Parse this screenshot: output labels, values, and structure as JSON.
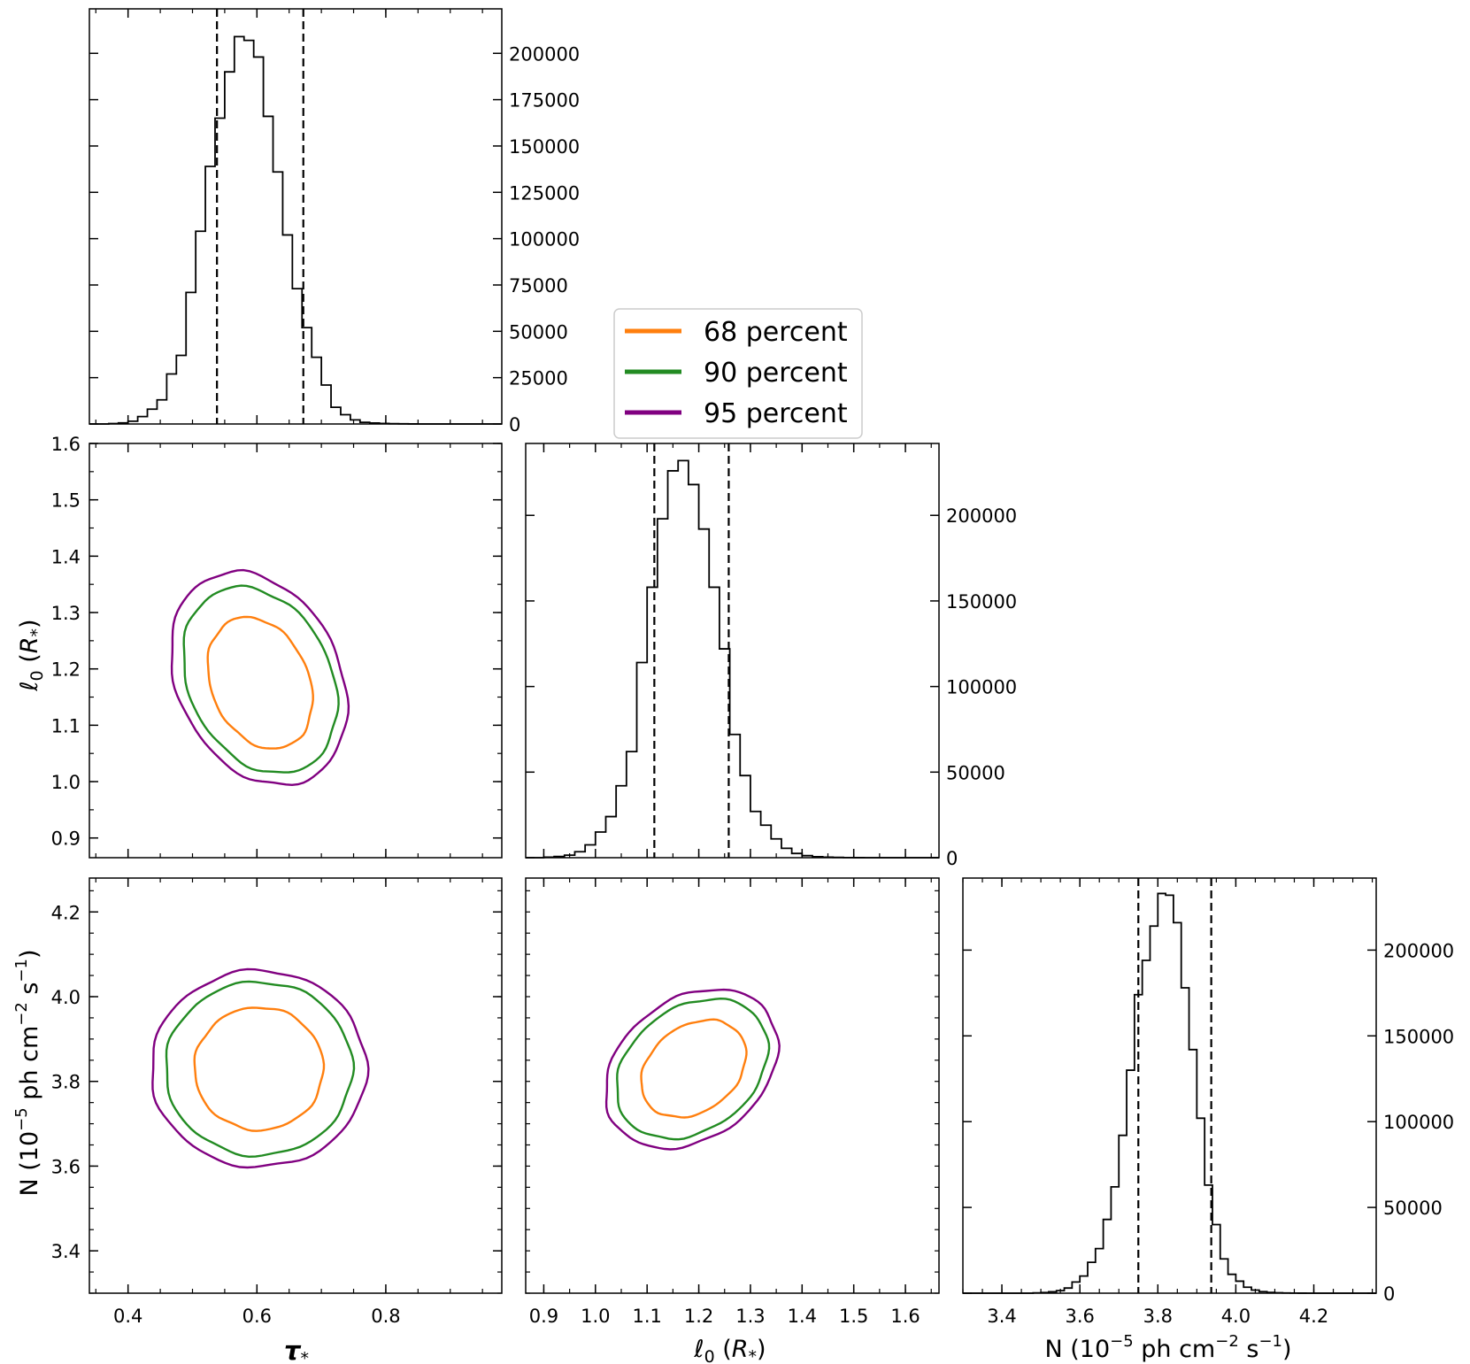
{
  "chart_data": [
    {
      "type": "histogram",
      "panel": "tau-marginal",
      "parameter": "τ*",
      "x_range": [
        0.34,
        0.98
      ],
      "y_range": [
        0,
        224000
      ],
      "y_ticks": [
        0,
        25000,
        50000,
        75000,
        100000,
        125000,
        150000,
        175000,
        200000
      ],
      "y_tick_labels": [
        "0",
        "25000",
        "50000",
        "75000",
        "100000",
        "125000",
        "150000",
        "175000",
        "200000"
      ],
      "bin_edges": [
        0.37,
        0.385,
        0.4,
        0.415,
        0.43,
        0.445,
        0.46,
        0.475,
        0.49,
        0.505,
        0.52,
        0.535,
        0.55,
        0.565,
        0.58,
        0.595,
        0.61,
        0.625,
        0.64,
        0.655,
        0.67,
        0.685,
        0.7,
        0.715,
        0.73,
        0.745,
        0.76,
        0.775,
        0.79,
        0.805,
        0.82,
        0.835,
        0.85
      ],
      "counts": [
        200,
        600,
        1500,
        4000,
        8000,
        13000,
        27000,
        37000,
        71000,
        104000,
        139000,
        165000,
        190000,
        209000,
        207000,
        198000,
        166000,
        136000,
        102000,
        73000,
        52000,
        36000,
        21000,
        9000,
        5000,
        2200,
        900,
        500,
        300,
        150,
        80,
        40
      ],
      "quantile_lines": [
        0.538,
        0.672
      ]
    },
    {
      "type": "histogram",
      "panel": "l0-marginal",
      "parameter": "ℓ0 (R*)",
      "x_range": [
        0.865,
        1.665
      ],
      "x_ticks": [
        0.9,
        1.0,
        1.1,
        1.2,
        1.3,
        1.4,
        1.5,
        1.6
      ],
      "x_tick_labels": [
        "0.9",
        "1.0",
        "1.1",
        "1.2",
        "1.3",
        "1.4",
        "1.5",
        "1.6"
      ],
      "y_range": [
        0,
        242000
      ],
      "y_ticks": [
        0,
        50000,
        100000,
        150000,
        200000
      ],
      "y_tick_labels": [
        "0",
        "50000",
        "100000",
        "150000",
        "200000"
      ],
      "bin_edges": [
        0.9,
        0.92,
        0.94,
        0.96,
        0.98,
        1.0,
        1.02,
        1.04,
        1.06,
        1.08,
        1.1,
        1.12,
        1.14,
        1.16,
        1.18,
        1.2,
        1.22,
        1.24,
        1.26,
        1.28,
        1.3,
        1.32,
        1.34,
        1.36,
        1.38,
        1.4,
        1.42,
        1.44,
        1.46,
        1.48,
        1.5,
        1.52
      ],
      "counts": [
        300,
        700,
        1500,
        3500,
        7500,
        15000,
        24000,
        42000,
        62000,
        114000,
        158000,
        198000,
        226000,
        232000,
        218000,
        192000,
        158000,
        122000,
        72000,
        48000,
        27000,
        19000,
        11000,
        5500,
        2500,
        1200,
        600,
        300,
        150,
        80,
        40
      ],
      "quantile_lines": [
        1.114,
        1.258
      ]
    },
    {
      "type": "histogram",
      "panel": "N-marginal",
      "parameter": "N (10^-5 ph cm^-2 s^-1)",
      "x_range": [
        3.3,
        4.36
      ],
      "x_ticks": [
        3.4,
        3.6,
        3.8,
        4.0,
        4.2
      ],
      "x_tick_labels": [
        "3.4",
        "3.6",
        "3.8",
        "4.0",
        "4.2"
      ],
      "y_range": [
        0,
        242000
      ],
      "y_ticks": [
        0,
        50000,
        100000,
        150000,
        200000
      ],
      "y_tick_labels": [
        "0",
        "50000",
        "100000",
        "150000",
        "200000"
      ],
      "bin_edges": [
        3.48,
        3.5,
        3.52,
        3.54,
        3.56,
        3.58,
        3.6,
        3.62,
        3.64,
        3.66,
        3.68,
        3.7,
        3.72,
        3.74,
        3.76,
        3.78,
        3.8,
        3.82,
        3.84,
        3.86,
        3.88,
        3.9,
        3.92,
        3.94,
        3.96,
        3.98,
        4.0,
        4.02,
        4.04,
        4.06,
        4.08,
        4.1,
        4.12,
        4.14,
        4.16,
        4.18
      ],
      "counts": [
        200,
        400,
        800,
        1500,
        3000,
        6500,
        10000,
        18000,
        26000,
        43000,
        62000,
        92000,
        130000,
        174000,
        194000,
        214000,
        233000,
        232000,
        216000,
        178000,
        142000,
        102000,
        63000,
        40000,
        20000,
        11000,
        7000,
        3500,
        1800,
        900,
        450,
        250,
        120,
        60,
        30
      ],
      "quantile_lines": [
        3.75,
        3.937
      ]
    },
    {
      "type": "contour",
      "panel": "tau-l0",
      "x_range": [
        0.34,
        0.98
      ],
      "y_range": [
        0.865,
        1.6
      ],
      "y_ticks": [
        0.9,
        1.0,
        1.1,
        1.2,
        1.3,
        1.4,
        1.5,
        1.6
      ],
      "y_tick_labels": [
        "0.9",
        "1.0",
        "1.1",
        "1.2",
        "1.3",
        "1.4",
        "1.5",
        "1.6"
      ],
      "levels": [
        {
          "level": "68 percent",
          "center": [
            0.605,
            1.175
          ],
          "axes": [
            0.1,
            0.113
          ],
          "angle": -0.62
        },
        {
          "level": "90 percent",
          "center": [
            0.605,
            1.18
          ],
          "axes": [
            0.147,
            0.16
          ],
          "angle": -0.62
        },
        {
          "level": "95 percent",
          "center": [
            0.603,
            1.183
          ],
          "axes": [
            0.168,
            0.183
          ],
          "angle": -0.62
        }
      ]
    },
    {
      "type": "contour",
      "panel": "tau-N",
      "x_range": [
        0.34,
        0.98
      ],
      "x_ticks": [
        0.4,
        0.6,
        0.8
      ],
      "x_tick_labels": [
        "0.4",
        "0.6",
        "0.8"
      ],
      "y_range": [
        3.3,
        4.28
      ],
      "y_ticks": [
        3.4,
        3.6,
        3.8,
        4.0,
        4.2
      ],
      "y_tick_labels": [
        "3.4",
        "3.6",
        "3.8",
        "4.0",
        "4.2"
      ],
      "levels": [
        {
          "level": "68 percent",
          "center": [
            0.603,
            3.83
          ],
          "axes": [
            0.1,
            0.145
          ],
          "angle": 0
        },
        {
          "level": "90 percent",
          "center": [
            0.603,
            3.83
          ],
          "axes": [
            0.145,
            0.205
          ],
          "angle": 0
        },
        {
          "level": "95 percent",
          "center": [
            0.603,
            3.83
          ],
          "axes": [
            0.167,
            0.232
          ],
          "angle": 0
        }
      ]
    },
    {
      "type": "contour",
      "panel": "l0-N",
      "x_range": [
        0.865,
        1.665
      ],
      "y_range": [
        3.3,
        4.28
      ],
      "levels": [
        {
          "level": "68 percent",
          "center": [
            1.19,
            3.83
          ],
          "axes": [
            0.135,
            0.11
          ],
          "angle": 0.72
        },
        {
          "level": "90 percent",
          "center": [
            1.187,
            3.83
          ],
          "axes": [
            0.195,
            0.158
          ],
          "angle": 0.72
        },
        {
          "level": "95 percent",
          "center": [
            1.186,
            3.83
          ],
          "axes": [
            0.222,
            0.18
          ],
          "angle": 0.72
        }
      ]
    }
  ],
  "axis_labels": {
    "tau": "τ",
    "tau_sub": "*",
    "l0": "ℓ",
    "l0_sub": "0",
    "l0_unit_open": " (",
    "l0_unit_R": "R",
    "l0_unit_star": "*",
    "l0_unit_close": ")",
    "N_prefix": "N (10",
    "N_exp1": "−5",
    "N_mid": " ph cm",
    "N_exp2": "−2",
    "N_mid2": " s",
    "N_exp3": "−1",
    "N_suffix": ")"
  },
  "legend": {
    "entries": [
      {
        "label": "68 percent",
        "color": "#ff7f0e"
      },
      {
        "label": "90 percent",
        "color": "#228b22"
      },
      {
        "label": "95 percent",
        "color": "#800080"
      }
    ]
  },
  "colors": {
    "histogram": "#000000",
    "quantile_line": "#000000"
  }
}
